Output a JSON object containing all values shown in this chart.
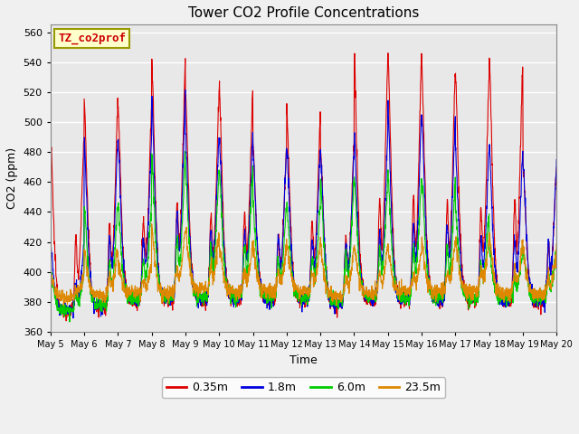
{
  "title": "Tower CO2 Profile Concentrations",
  "xlabel": "Time",
  "ylabel": "CO2 (ppm)",
  "ylim": [
    360,
    565
  ],
  "yticks": [
    360,
    380,
    400,
    420,
    440,
    460,
    480,
    500,
    520,
    540,
    560
  ],
  "bg_color": "#e8e8e8",
  "fig_color": "#f0f0f0",
  "legend_label": "TZ_co2prof",
  "legend_bbox_facecolor": "#ffffcc",
  "legend_bbox_edgecolor": "#999900",
  "series_order": [
    "0.35m",
    "1.8m",
    "6.0m",
    "23.5m"
  ],
  "series": {
    "0.35m": {
      "color": "#dd0000",
      "lw": 0.8
    },
    "1.8m": {
      "color": "#0000dd",
      "lw": 0.8
    },
    "6.0m": {
      "color": "#00cc00",
      "lw": 0.8
    },
    "23.5m": {
      "color": "#dd8800",
      "lw": 0.8
    }
  },
  "start_day": 5,
  "n_days": 15,
  "pts_per_day": 144,
  "night_peak_heights": {
    "0.35m": [
      490,
      515,
      511,
      543,
      520,
      524,
      484,
      507,
      484,
      543,
      546,
      536,
      530,
      543,
      472
    ],
    "1.8m": [
      418,
      488,
      488,
      519,
      492,
      492,
      482,
      482,
      480,
      492,
      506,
      505,
      481,
      482,
      471
    ],
    "6.0m": [
      400,
      444,
      445,
      480,
      466,
      469,
      443,
      444,
      461,
      462,
      463,
      462,
      440,
      415,
      415
    ],
    "23.5m": [
      398,
      415,
      405,
      428,
      427,
      418,
      417,
      418,
      416,
      416,
      416,
      420,
      421,
      424,
      414
    ]
  },
  "day_base": {
    "0.35m": [
      373,
      376,
      380,
      381,
      381,
      381,
      381,
      381,
      378,
      381,
      381,
      381,
      381,
      380,
      380
    ],
    "1.8m": [
      374,
      377,
      381,
      382,
      382,
      382,
      382,
      382,
      379,
      382,
      382,
      382,
      382,
      381,
      381
    ],
    "6.0m": [
      374,
      378,
      382,
      383,
      383,
      383,
      383,
      383,
      380,
      383,
      383,
      383,
      383,
      382,
      382
    ],
    "23.5m": [
      383,
      385,
      386,
      386,
      388,
      387,
      387,
      387,
      384,
      386,
      387,
      387,
      387,
      385,
      385
    ]
  },
  "spike_sharpness": 8.0,
  "noise_level": 2.5
}
